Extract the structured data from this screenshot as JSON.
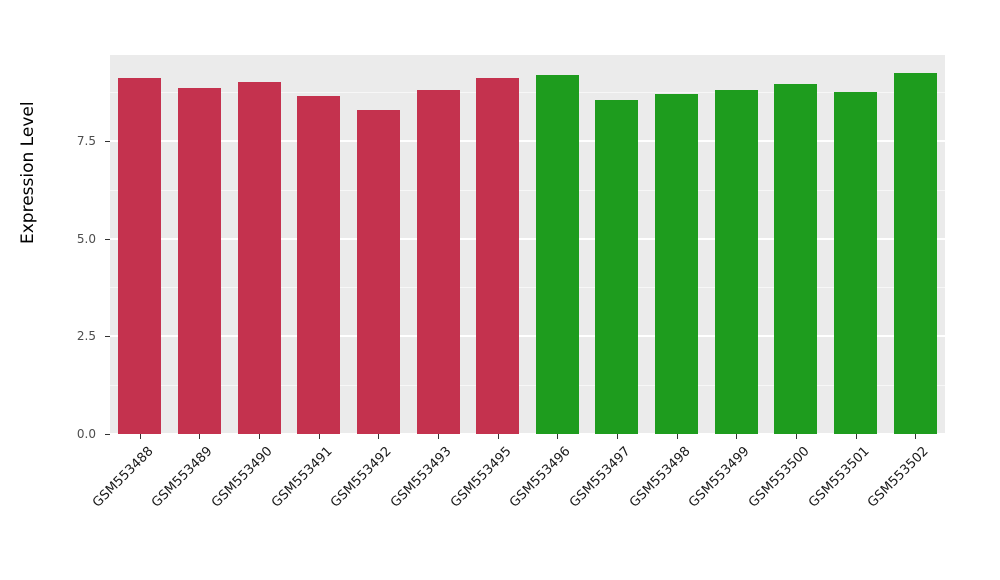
{
  "chart_data": {
    "type": "bar",
    "title": "",
    "xlabel": "",
    "ylabel": "Expression Level",
    "ylim": [
      0,
      9.7
    ],
    "ytick_values": [
      0,
      2.5,
      5,
      7.5
    ],
    "ytick_labels": [
      "0.0",
      "2.5",
      "5.0",
      "7.5"
    ],
    "minor_tick_values": [
      1.25,
      3.75,
      6.25,
      8.75
    ],
    "grid": "on",
    "legend": "none",
    "categories": [
      "GSM553488",
      "GSM553489",
      "GSM553490",
      "GSM553491",
      "GSM553492",
      "GSM553493",
      "GSM553495",
      "GSM553496",
      "GSM553497",
      "GSM553498",
      "GSM553499",
      "GSM553500",
      "GSM553501",
      "GSM553502"
    ],
    "values": [
      9.1,
      8.85,
      9.0,
      8.65,
      8.3,
      8.8,
      9.1,
      9.2,
      8.55,
      8.7,
      8.8,
      8.95,
      8.75,
      9.25
    ],
    "bar_colors": [
      "#C4324E",
      "#C4324E",
      "#C4324E",
      "#C4324E",
      "#C4324E",
      "#C4324E",
      "#C4324E",
      "#1E9C1E",
      "#1E9C1E",
      "#1E9C1E",
      "#1E9C1E",
      "#1E9C1E",
      "#1E9C1E",
      "#1E9C1E"
    ],
    "group_colors": {
      "red_group": "#C4324E",
      "green_group": "#1E9C1E"
    },
    "panel_background": "#EBEBEB",
    "grid_major_color": "#FFFFFF",
    "grid_minor_color": "#F7F7F7"
  }
}
